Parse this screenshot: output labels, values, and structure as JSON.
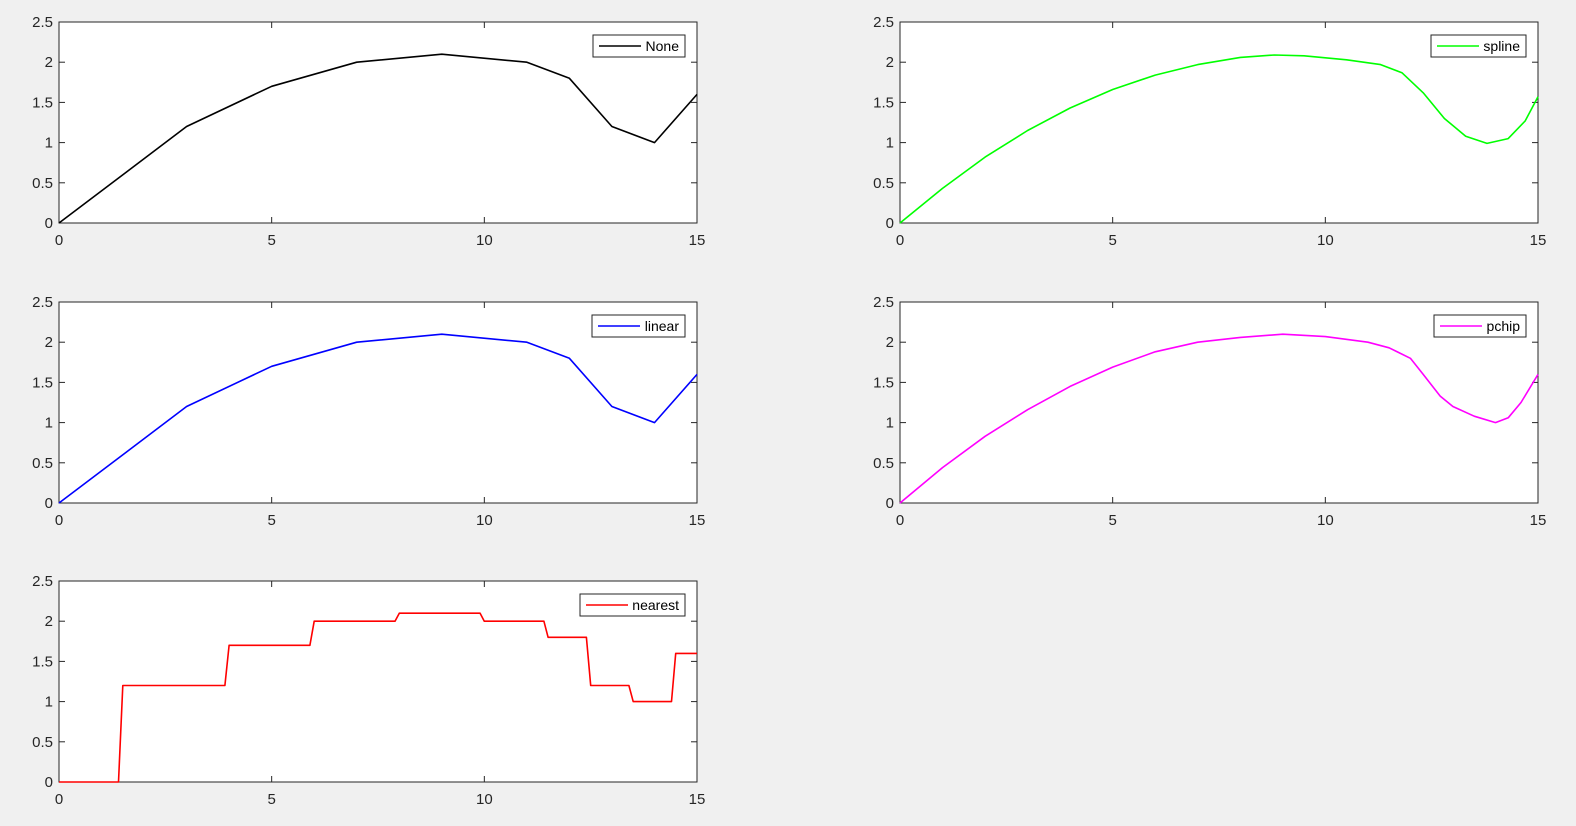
{
  "figure": {
    "background": "#f0f0f0",
    "axes_background": "#ffffff",
    "axis_color": "#262626"
  },
  "chart_data": [
    {
      "type": "line",
      "xlim": [
        0,
        15
      ],
      "ylim": [
        0,
        2.5
      ],
      "xticks": [
        0,
        5,
        10,
        15
      ],
      "xtick_labels": [
        "0",
        "5",
        "10",
        "15"
      ],
      "yticks": [
        0,
        0.5,
        1,
        1.5,
        2,
        2.5
      ],
      "ytick_labels": [
        "0",
        "0.5",
        "1",
        "1.5",
        "2",
        "2.5"
      ],
      "grid": false,
      "legend_position": "top-right",
      "series": [
        {
          "name": "None",
          "color": "#000000",
          "x": [
            0,
            3,
            5,
            7,
            9,
            11,
            12,
            13,
            14,
            15
          ],
          "y": [
            0,
            1.2,
            1.7,
            2.0,
            2.1,
            2.0,
            1.8,
            1.2,
            1.0,
            1.6
          ]
        }
      ]
    },
    {
      "type": "line",
      "xlim": [
        0,
        15
      ],
      "ylim": [
        0,
        2.5
      ],
      "xticks": [
        0,
        5,
        10,
        15
      ],
      "xtick_labels": [
        "0",
        "5",
        "10",
        "15"
      ],
      "yticks": [
        0,
        0.5,
        1,
        1.5,
        2,
        2.5
      ],
      "ytick_labels": [
        "0",
        "0.5",
        "1",
        "1.5",
        "2",
        "2.5"
      ],
      "grid": false,
      "legend_position": "top-right",
      "series": [
        {
          "name": "spline",
          "color": "#00ff00",
          "x": [
            0,
            1,
            2,
            3,
            4,
            5,
            6,
            7,
            8,
            8.8,
            9.5,
            10.5,
            11.3,
            11.8,
            12.3,
            12.8,
            13.3,
            13.8,
            14.3,
            14.7,
            15
          ],
          "y": [
            0,
            0.43,
            0.82,
            1.15,
            1.43,
            1.66,
            1.84,
            1.97,
            2.06,
            2.09,
            2.08,
            2.03,
            1.97,
            1.87,
            1.62,
            1.3,
            1.08,
            0.99,
            1.05,
            1.27,
            1.57
          ]
        }
      ]
    },
    {
      "type": "line",
      "xlim": [
        0,
        15
      ],
      "ylim": [
        0,
        2.5
      ],
      "xticks": [
        0,
        5,
        10,
        15
      ],
      "xtick_labels": [
        "0",
        "5",
        "10",
        "15"
      ],
      "yticks": [
        0,
        0.5,
        1,
        1.5,
        2,
        2.5
      ],
      "ytick_labels": [
        "0",
        "0.5",
        "1",
        "1.5",
        "2",
        "2.5"
      ],
      "grid": false,
      "legend_position": "top-right",
      "series": [
        {
          "name": "linear",
          "color": "#0000ff",
          "x": [
            0,
            3,
            5,
            7,
            9,
            11,
            12,
            13,
            14,
            15
          ],
          "y": [
            0,
            1.2,
            1.7,
            2.0,
            2.1,
            2.0,
            1.8,
            1.2,
            1.0,
            1.6
          ]
        }
      ]
    },
    {
      "type": "line",
      "xlim": [
        0,
        15
      ],
      "ylim": [
        0,
        2.5
      ],
      "xticks": [
        0,
        5,
        10,
        15
      ],
      "xtick_labels": [
        "0",
        "5",
        "10",
        "15"
      ],
      "yticks": [
        0,
        0.5,
        1,
        1.5,
        2,
        2.5
      ],
      "ytick_labels": [
        "0",
        "0.5",
        "1",
        "1.5",
        "2",
        "2.5"
      ],
      "grid": false,
      "legend_position": "top-right",
      "series": [
        {
          "name": "pchip",
          "color": "#ff00ff",
          "x": [
            0,
            1,
            2,
            3,
            4,
            5,
            6,
            7,
            8,
            9,
            10,
            11,
            11.5,
            12,
            12.3,
            12.7,
            13,
            13.5,
            14,
            14.3,
            14.6,
            15
          ],
          "y": [
            0,
            0.44,
            0.83,
            1.16,
            1.45,
            1.69,
            1.88,
            2.0,
            2.06,
            2.1,
            2.07,
            2.0,
            1.93,
            1.8,
            1.6,
            1.33,
            1.2,
            1.08,
            1.0,
            1.06,
            1.25,
            1.6
          ]
        }
      ]
    },
    {
      "type": "line",
      "xlim": [
        0,
        15
      ],
      "ylim": [
        0,
        2.5
      ],
      "xticks": [
        0,
        5,
        10,
        15
      ],
      "xtick_labels": [
        "0",
        "5",
        "10",
        "15"
      ],
      "yticks": [
        0,
        0.5,
        1,
        1.5,
        2,
        2.5
      ],
      "ytick_labels": [
        "0",
        "0.5",
        "1",
        "1.5",
        "2",
        "2.5"
      ],
      "grid": false,
      "legend_position": "top-right",
      "series": [
        {
          "name": "nearest",
          "color": "#ff0000",
          "x": [
            0,
            1.4,
            1.5,
            3.9,
            4.0,
            5.9,
            6.0,
            7.9,
            8.0,
            9.9,
            10.0,
            11.4,
            11.5,
            12.4,
            12.5,
            13.4,
            13.5,
            14.4,
            14.5,
            15
          ],
          "y": [
            0,
            0,
            1.2,
            1.2,
            1.7,
            1.7,
            2.0,
            2.0,
            2.1,
            2.1,
            2.0,
            2.0,
            1.8,
            1.8,
            1.2,
            1.2,
            1.0,
            1.0,
            1.6,
            1.6
          ]
        }
      ]
    }
  ]
}
